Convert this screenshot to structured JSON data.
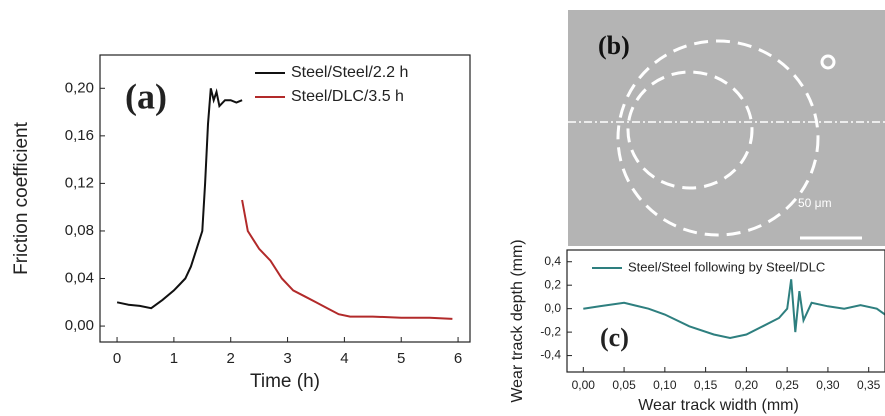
{
  "chart_data": [
    {
      "type": "line",
      "annotation": "(a)",
      "xlabel": "Time (h)",
      "ylabel": "Friction coefficient",
      "xlim": [
        -0.3,
        6.21
      ],
      "ylim": [
        -0.0134,
        0.228
      ],
      "xticks": [
        0,
        1,
        2,
        3,
        4,
        5,
        6
      ],
      "yticks": [
        {
          "value": 0,
          "label": "0,00"
        },
        {
          "value": 0.04,
          "label": "0,04"
        },
        {
          "value": 0.08,
          "label": "0,08"
        },
        {
          "value": 0.12,
          "label": "0,12"
        },
        {
          "value": 0.16,
          "label": "0,16"
        },
        {
          "value": 0.2,
          "label": "0,20"
        }
      ],
      "legend": "upper right",
      "series": [
        {
          "name": "Steel/Steel/2.2 h",
          "color": "#111111",
          "x": [
            0,
            0.2,
            0.4,
            0.6,
            0.8,
            1.0,
            1.1,
            1.2,
            1.3,
            1.4,
            1.5,
            1.55,
            1.6,
            1.65,
            1.7,
            1.75,
            1.8,
            1.9,
            2.0,
            2.1,
            2.2
          ],
          "values": [
            0.02,
            0.018,
            0.017,
            0.015,
            0.022,
            0.03,
            0.035,
            0.04,
            0.05,
            0.065,
            0.08,
            0.12,
            0.17,
            0.2,
            0.19,
            0.197,
            0.185,
            0.19,
            0.19,
            0.188,
            0.19
          ]
        },
        {
          "name": "Steel/DLC/3.5 h",
          "color": "#b22a2a",
          "x": [
            2.2,
            2.3,
            2.5,
            2.7,
            2.9,
            3.1,
            3.3,
            3.5,
            3.7,
            3.9,
            4.1,
            4.5,
            5.0,
            5.5,
            5.9
          ],
          "values": [
            0.106,
            0.08,
            0.065,
            0.055,
            0.04,
            0.03,
            0.025,
            0.02,
            0.015,
            0.01,
            0.008,
            0.008,
            0.007,
            0.007,
            0.006
          ]
        }
      ]
    },
    {
      "type": "line",
      "annotation": "(c)",
      "xlabel": "Wear track width (mm)",
      "ylabel": "Wear track depth (mm)",
      "xlim": [
        -0.02,
        0.37
      ],
      "ylim": [
        -0.54,
        0.5
      ],
      "xticks": [
        {
          "value": 0,
          "label": "0,00"
        },
        {
          "value": 0.05,
          "label": "0,05"
        },
        {
          "value": 0.1,
          "label": "0,10"
        },
        {
          "value": 0.15,
          "label": "0,15"
        },
        {
          "value": 0.2,
          "label": "0,20"
        },
        {
          "value": 0.25,
          "label": "0,25"
        },
        {
          "value": 0.3,
          "label": "0,30"
        },
        {
          "value": 0.35,
          "label": "0,35"
        }
      ],
      "yticks": [
        {
          "value": -0.4,
          "label": "-0,4"
        },
        {
          "value": -0.2,
          "label": "-0,2"
        },
        {
          "value": 0,
          "label": "0,0"
        },
        {
          "value": 0.2,
          "label": "0,2"
        },
        {
          "value": 0.4,
          "label": "0,4"
        }
      ],
      "legend": "upper center",
      "series": [
        {
          "name": "Steel/Steel following by Steel/DLC",
          "color": "#2e7f7f",
          "x": [
            0,
            0.02,
            0.05,
            0.08,
            0.1,
            0.13,
            0.16,
            0.18,
            0.2,
            0.22,
            0.24,
            0.25,
            0.255,
            0.26,
            0.265,
            0.27,
            0.28,
            0.3,
            0.32,
            0.34,
            0.36,
            0.37
          ],
          "values": [
            0,
            0.02,
            0.05,
            0,
            -0.05,
            -0.15,
            -0.22,
            -0.25,
            -0.22,
            -0.15,
            -0.08,
            0,
            0.25,
            -0.2,
            0.15,
            -0.1,
            0.05,
            0.02,
            0,
            0.03,
            0,
            -0.05
          ]
        }
      ]
    }
  ],
  "image_panel": {
    "label": "(b)",
    "scale_bar": "50 μm"
  }
}
